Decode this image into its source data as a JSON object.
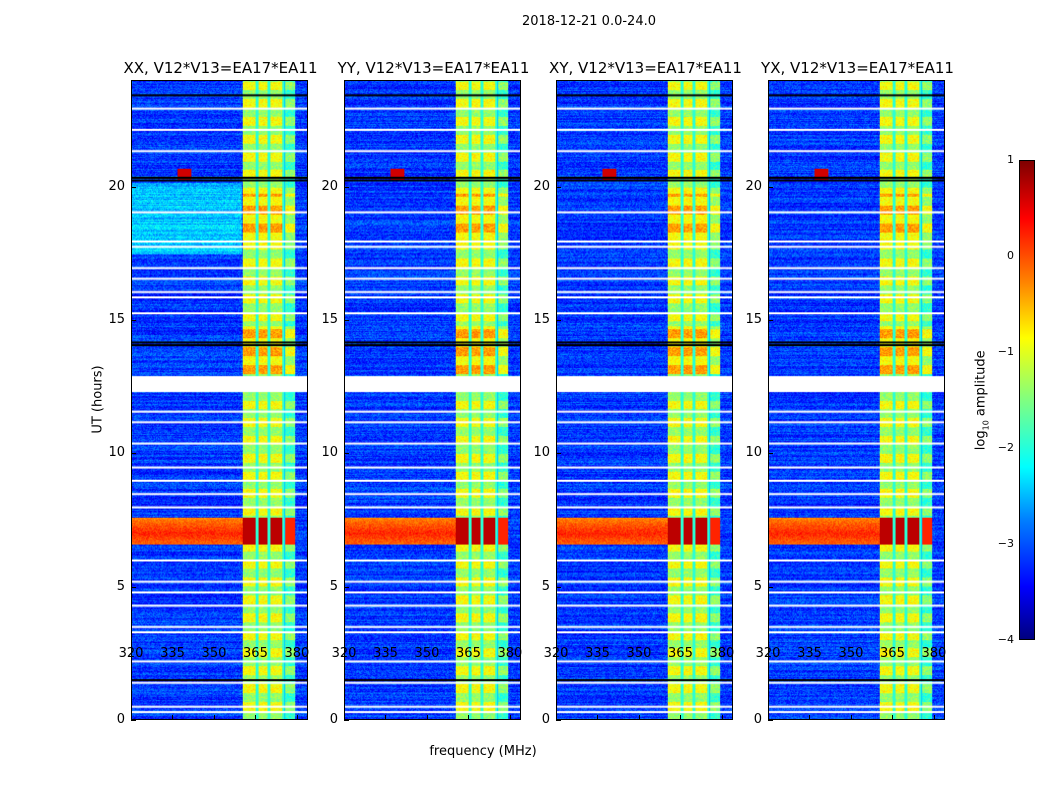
{
  "chart_data": {
    "type": "heatmap",
    "title": "2018-12-21 0.0-24.0",
    "panels": [
      {
        "title": "XX, V12*V13=EA17*EA11"
      },
      {
        "title": "YY, V12*V13=EA17*EA11"
      },
      {
        "title": "XY, V12*V13=EA17*EA11"
      },
      {
        "title": "YX, V12*V13=EA17*EA11"
      }
    ],
    "xlabel": "frequency (MHz)",
    "ylabel": "UT (hours)",
    "xlim": [
      320,
      384
    ],
    "ylim": [
      0,
      24
    ],
    "xticks": [
      "320",
      "335",
      "350",
      "365",
      "380"
    ],
    "yticks": [
      "0",
      "5",
      "10",
      "15",
      "20"
    ],
    "colorbar": {
      "label": "log10 amplitude",
      "label_main": "log",
      "label_sub": "10",
      "label_rest": " amplitude",
      "range": [
        -4,
        1
      ],
      "ticks": [
        "1",
        "0",
        "−1",
        "−2",
        "−3",
        "−4"
      ],
      "colormap": "jet"
    },
    "features": {
      "rfi_band_mhz": [
        360.4,
        379.5
      ],
      "rfi_subband_edges_mhz": [
        365.5,
        369.8,
        375.2
      ],
      "strong_rfi_hours": [
        6.6,
        7.6
      ],
      "narrowband_spike": {
        "freq_mhz": 339,
        "hour": 20.5
      },
      "flagged_hours": [
        0.3,
        0.5,
        1.4,
        2.2,
        3.3,
        3.5,
        4.3,
        4.8,
        5.2,
        6.0,
        8.0,
        8.5,
        9.0,
        9.5,
        10.4,
        11.2,
        11.6,
        12.4,
        12.6,
        12.8,
        15.3,
        15.9,
        16.1,
        16.6,
        17.0,
        17.8,
        18.0,
        19.1,
        21.4,
        22.2,
        23.0
      ],
      "dark_rows_hours": [
        1.5,
        14.1,
        14.2,
        20.3,
        20.4,
        23.5
      ]
    }
  }
}
